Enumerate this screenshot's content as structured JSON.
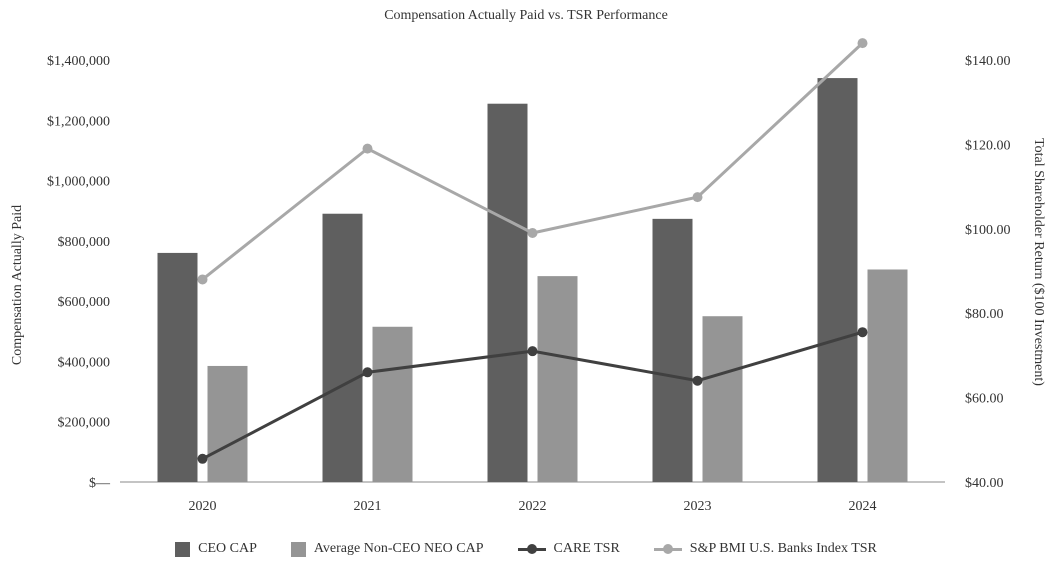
{
  "chart_data": {
    "type": "bar",
    "title": "Compensation Actually Paid vs. TSR Performance",
    "categories": [
      "2020",
      "2021",
      "2022",
      "2023",
      "2024"
    ],
    "y_left": {
      "label": "Compensation Actually Paid",
      "range": [
        0,
        1400000
      ],
      "ticks": [
        0,
        200000,
        400000,
        600000,
        800000,
        1000000,
        1200000,
        1400000
      ],
      "tick_labels": [
        "$—",
        "$200,000",
        "$400,000",
        "$600,000",
        "$800,000",
        "$1,000,000",
        "$1,200,000",
        "$1,400,000"
      ]
    },
    "y_right": {
      "label": "Total Shareholder Return ($100 Investment)",
      "range": [
        40,
        140
      ],
      "ticks": [
        40,
        60,
        80,
        100,
        120,
        140
      ],
      "tick_labels": [
        "$40.00",
        "$60.00",
        "$80.00",
        "$100.00",
        "$120.00",
        "$140.00"
      ]
    },
    "bar_series": [
      {
        "name": "CEO CAP",
        "color": "#5f5f5f",
        "values": [
          760000,
          890000,
          1255000,
          873000,
          1340000
        ]
      },
      {
        "name": "Average Non-CEO NEO CAP",
        "color": "#959595",
        "values": [
          385000,
          515000,
          683000,
          550000,
          705000
        ]
      }
    ],
    "line_series": [
      {
        "name": "CARE TSR",
        "color": "#404040",
        "axis": "right",
        "values": [
          45.5,
          66,
          71,
          64,
          75.5
        ]
      },
      {
        "name": "S&P BMI U.S. Banks Index TSR",
        "color": "#a8a8a8",
        "axis": "right",
        "values": [
          88,
          119,
          99,
          107.5,
          144
        ]
      }
    ],
    "legend_position": "bottom",
    "grid": false
  }
}
